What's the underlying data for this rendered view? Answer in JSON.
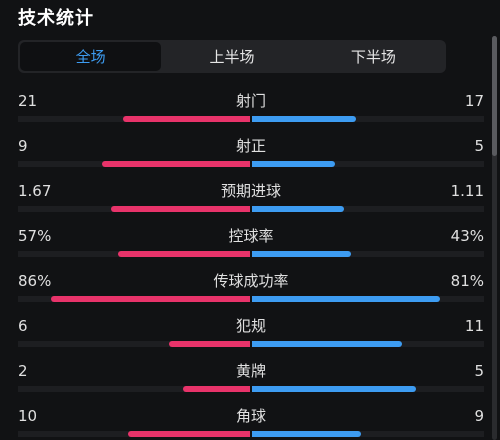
{
  "title": "技术统计",
  "tabs": [
    {
      "label": "全场",
      "active": true
    },
    {
      "label": "上半场",
      "active": false
    },
    {
      "label": "下半场",
      "active": false
    }
  ],
  "colors": {
    "home_bar": "#e8336a",
    "away_bar": "#3d9cf2",
    "active_tab_text": "#3d9cf2"
  },
  "stats": [
    {
      "label": "射门",
      "home": "21",
      "away": "17",
      "home_share": 0.55,
      "away_share": 0.45
    },
    {
      "label": "射正",
      "home": "9",
      "away": "5",
      "home_share": 0.64,
      "away_share": 0.36
    },
    {
      "label": "预期进球",
      "home": "1.67",
      "away": "1.11",
      "home_share": 0.6,
      "away_share": 0.4
    },
    {
      "label": "控球率",
      "home": "57%",
      "away": "43%",
      "home_share": 0.57,
      "away_share": 0.43
    },
    {
      "label": "传球成功率",
      "home": "86%",
      "away": "81%",
      "home_share": 0.86,
      "away_share": 0.81
    },
    {
      "label": "犯规",
      "home": "6",
      "away": "11",
      "home_share": 0.35,
      "away_share": 0.65
    },
    {
      "label": "黄牌",
      "home": "2",
      "away": "5",
      "home_share": 0.29,
      "away_share": 0.71
    },
    {
      "label": "角球",
      "home": "10",
      "away": "9",
      "home_share": 0.53,
      "away_share": 0.47
    }
  ]
}
